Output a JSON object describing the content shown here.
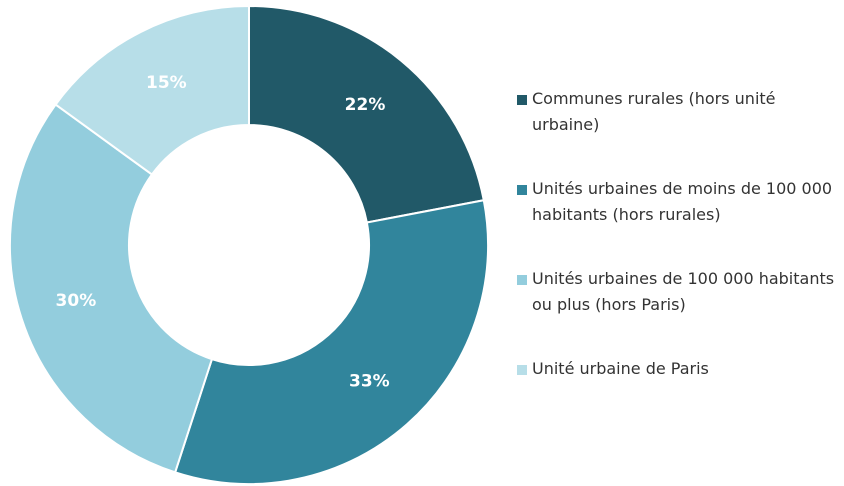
{
  "chart_data": {
    "type": "pie",
    "donut": true,
    "categories": [
      "Communes rurales (hors unité urbaine)",
      "Unités urbaines de moins de 100 000 habitants (hors rurales)",
      "Unités urbaines de 100 000 habitants ou plus (hors Paris)",
      "Unité urbaine de Paris"
    ],
    "values": [
      22,
      33,
      30,
      15
    ],
    "data_labels": [
      "22%",
      "33%",
      "30%",
      "15%"
    ],
    "colors": [
      "#215968",
      "#31859C",
      "#93CDDD",
      "#B7DEE8"
    ],
    "legend_position": "right"
  }
}
